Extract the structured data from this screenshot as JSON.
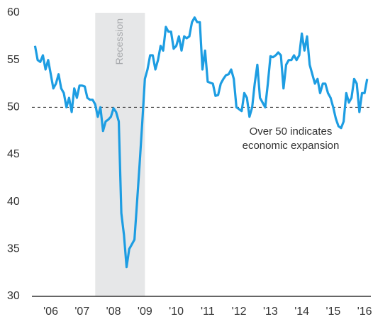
{
  "chart_data": {
    "type": "line",
    "color": "#1d9de2",
    "xlim": [
      2005.9,
      2016.7
    ],
    "ylim": [
      30,
      60
    ],
    "yticks": [
      30,
      35,
      40,
      45,
      50,
      55,
      60
    ],
    "xticks": [
      {
        "value": 2006.5,
        "label": "'06"
      },
      {
        "value": 2007.5,
        "label": "'07"
      },
      {
        "value": 2008.5,
        "label": "'08"
      },
      {
        "value": 2009.5,
        "label": "'09"
      },
      {
        "value": 2010.5,
        "label": "'10"
      },
      {
        "value": 2011.5,
        "label": "'11"
      },
      {
        "value": 2012.5,
        "label": "'12"
      },
      {
        "value": 2013.5,
        "label": "'13"
      },
      {
        "value": 2014.5,
        "label": "'14"
      },
      {
        "value": 2015.5,
        "label": "'15"
      },
      {
        "value": 2016.5,
        "label": "'16"
      }
    ],
    "reference_line": 50,
    "annotation": [
      "Over 50 indicates",
      "economic expansion"
    ],
    "shaded_region": {
      "label": "Recession",
      "start": 2007.917,
      "end": 2009.5
    },
    "x": [
      2006.0,
      2006.083,
      2006.167,
      2006.25,
      2006.333,
      2006.417,
      2006.5,
      2006.583,
      2006.667,
      2006.75,
      2006.833,
      2006.917,
      2007.0,
      2007.083,
      2007.167,
      2007.25,
      2007.333,
      2007.417,
      2007.5,
      2007.583,
      2007.667,
      2007.75,
      2007.833,
      2007.917,
      2008.0,
      2008.083,
      2008.167,
      2008.25,
      2008.333,
      2008.417,
      2008.5,
      2008.583,
      2008.667,
      2008.75,
      2008.833,
      2008.917,
      2009.0,
      2009.083,
      2009.167,
      2009.25,
      2009.333,
      2009.417,
      2009.5,
      2009.583,
      2009.667,
      2009.75,
      2009.833,
      2009.917,
      2010.0,
      2010.083,
      2010.167,
      2010.25,
      2010.333,
      2010.417,
      2010.5,
      2010.583,
      2010.667,
      2010.75,
      2010.833,
      2010.917,
      2011.0,
      2011.083,
      2011.167,
      2011.25,
      2011.333,
      2011.417,
      2011.5,
      2011.583,
      2011.667,
      2011.75,
      2011.833,
      2011.917,
      2012.0,
      2012.083,
      2012.167,
      2012.25,
      2012.333,
      2012.417,
      2012.5,
      2012.583,
      2012.667,
      2012.75,
      2012.833,
      2012.917,
      2013.0,
      2013.083,
      2013.167,
      2013.25,
      2013.333,
      2013.417,
      2013.5,
      2013.583,
      2013.667,
      2013.75,
      2013.833,
      2013.917,
      2014.0,
      2014.083,
      2014.167,
      2014.25,
      2014.333,
      2014.417,
      2014.5,
      2014.583,
      2014.667,
      2014.75,
      2014.833,
      2014.917,
      2015.0,
      2015.083,
      2015.167,
      2015.25,
      2015.333,
      2015.417,
      2015.5,
      2015.583,
      2015.667,
      2015.75,
      2015.833,
      2015.917,
      2016.0,
      2016.083,
      2016.167,
      2016.25,
      2016.333,
      2016.417,
      2016.5,
      2016.583
    ],
    "values": [
      56.5,
      55,
      54.8,
      55.5,
      54,
      55,
      53.5,
      52,
      52.5,
      53.5,
      52,
      51.5,
      50,
      51,
      49.5,
      52,
      51,
      52.3,
      52.3,
      52.2,
      51,
      50.8,
      50.8,
      50.3,
      49,
      50,
      47.5,
      48.5,
      48.7,
      49,
      49.9,
      49.5,
      48.5,
      38.8,
      36.5,
      33.1,
      35,
      35.5,
      36,
      40,
      44,
      48.5,
      53,
      54,
      55.5,
      55.5,
      54,
      55,
      56.5,
      56,
      58.5,
      58,
      58,
      56.2,
      56.5,
      57.5,
      56,
      57.5,
      57.3,
      57.5,
      59,
      59.5,
      59,
      59,
      54,
      56,
      52.7,
      52.6,
      52.5,
      51.2,
      51.3,
      52.5,
      53,
      53.4,
      53.5,
      54,
      53,
      50,
      49.8,
      49.6,
      51.5,
      51,
      49,
      50,
      52.5,
      54.5,
      51,
      50.5,
      50,
      52.5,
      55.4,
      55.3,
      55.5,
      55.8,
      55.5,
      52,
      54.5,
      55,
      55,
      55.5,
      55,
      55.5,
      57.8,
      56,
      57.5,
      54.5,
      53.5,
      52.5,
      53,
      51.5,
      52.5,
      52.5,
      51.5,
      51,
      50,
      48.8,
      48,
      47.8,
      48.5,
      51.5,
      50.5,
      51,
      53,
      52.5,
      49.5,
      51.5,
      51.5,
      53
    ]
  }
}
